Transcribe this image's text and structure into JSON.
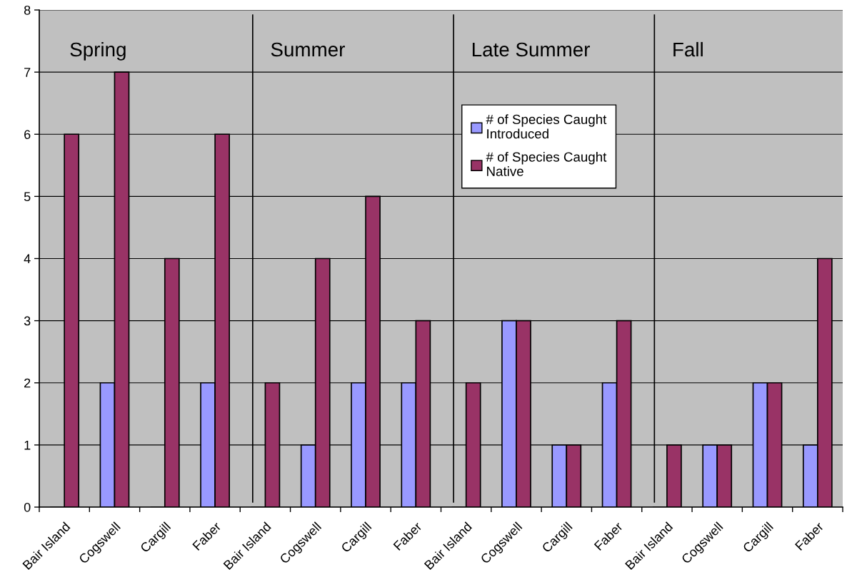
{
  "chart_data": {
    "type": "bar",
    "categories": [
      "Bair Island",
      "Cogswell",
      "Cargill",
      "Faber",
      "Bair Island",
      "Cogswell",
      "Cargill",
      "Faber",
      "Bair Island",
      "Cogswell",
      "Cargill",
      "Faber",
      "Bair Island",
      "Cogswell",
      "Cargill",
      "Faber"
    ],
    "series": [
      {
        "name": "# of Species Caught\nIntroduced",
        "color": "#9999ff",
        "values": [
          0,
          2,
          0,
          2,
          0,
          1,
          2,
          2,
          0,
          3,
          1,
          2,
          0,
          1,
          2,
          1
        ]
      },
      {
        "name": "# of Species Caught\nNative",
        "color": "#993366",
        "values": [
          6,
          7,
          4,
          6,
          2,
          4,
          5,
          3,
          2,
          3,
          1,
          3,
          1,
          1,
          2,
          4
        ]
      }
    ],
    "ylim": [
      0,
      8
    ],
    "yticks": [
      0,
      1,
      2,
      3,
      4,
      5,
      6,
      7,
      8
    ],
    "grid": "y",
    "legend": "top",
    "annotations": [
      "Spring",
      "Summer",
      "Late Summer",
      "Fall"
    ]
  }
}
